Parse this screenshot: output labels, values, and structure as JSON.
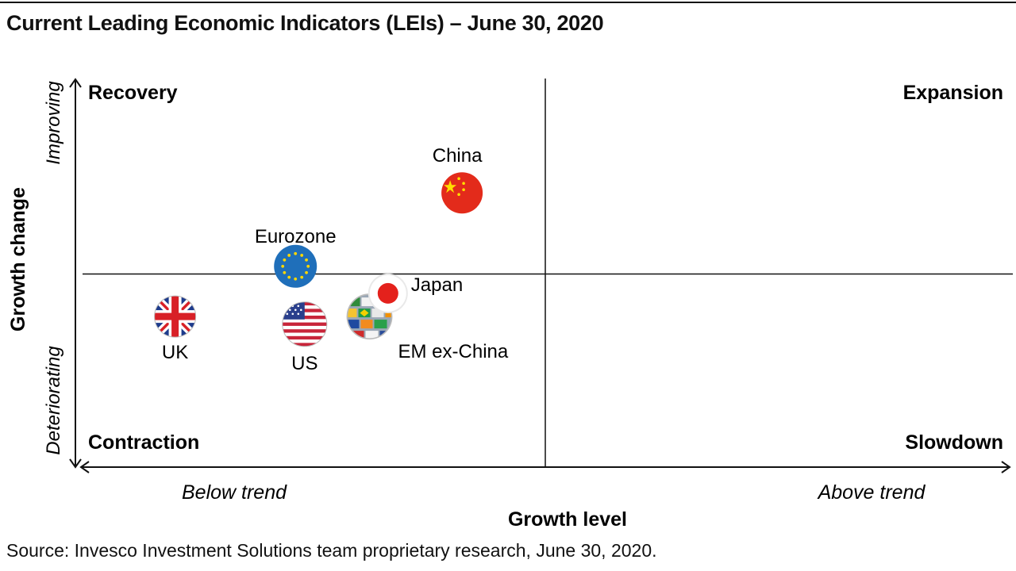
{
  "title": "Current Leading Economic Indicators (LEIs) – June 30, 2020",
  "source": "Source: Invesco Investment Solutions team proprietary research, June 30, 2020.",
  "colors": {
    "china": "#e32b1b",
    "china_star": "#ffde00",
    "eurozone": "#1f6fba",
    "eu_star": "#ffd700",
    "japan": "#e4211c",
    "uk_blue": "#1d3b8c",
    "uk_red": "#d82027",
    "us_red": "#c8253a",
    "us_blue": "#2a3f8c",
    "axis": "#111111"
  },
  "chart_data": {
    "type": "scatter",
    "xlabel": "Growth level",
    "ylabel": "Growth change",
    "xlim": [
      0,
      10
    ],
    "ylim": [
      0,
      10
    ],
    "x_ends": {
      "low": "Below trend",
      "high": "Above trend"
    },
    "y_ends": {
      "low": "Deteriorating",
      "high": "Improving"
    },
    "quadrant_divider": {
      "x": 5,
      "y": 5
    },
    "quadrants": {
      "top_left": "Recovery",
      "top_right": "Expansion",
      "bottom_left": "Contraction",
      "bottom_right": "Slowdown"
    },
    "points": [
      {
        "name": "China",
        "x": 4.1,
        "y": 7.1,
        "icon": "china-flag-icon",
        "label_pos": "above"
      },
      {
        "name": "Eurozone",
        "x": 2.3,
        "y": 5.2,
        "icon": "eu-flag-icon",
        "label_pos": "above"
      },
      {
        "name": "Japan",
        "x": 3.3,
        "y": 4.5,
        "icon": "japan-flag-icon",
        "label_pos": "right"
      },
      {
        "name": "UK",
        "x": 1.0,
        "y": 3.9,
        "icon": "uk-flag-icon",
        "label_pos": "below"
      },
      {
        "name": "US",
        "x": 2.4,
        "y": 3.7,
        "icon": "us-flag-icon",
        "label_pos": "below"
      },
      {
        "name": "EM ex-China",
        "x": 3.1,
        "y": 3.9,
        "icon": "em-flags-globe-icon",
        "label_pos": "below-right"
      }
    ]
  }
}
